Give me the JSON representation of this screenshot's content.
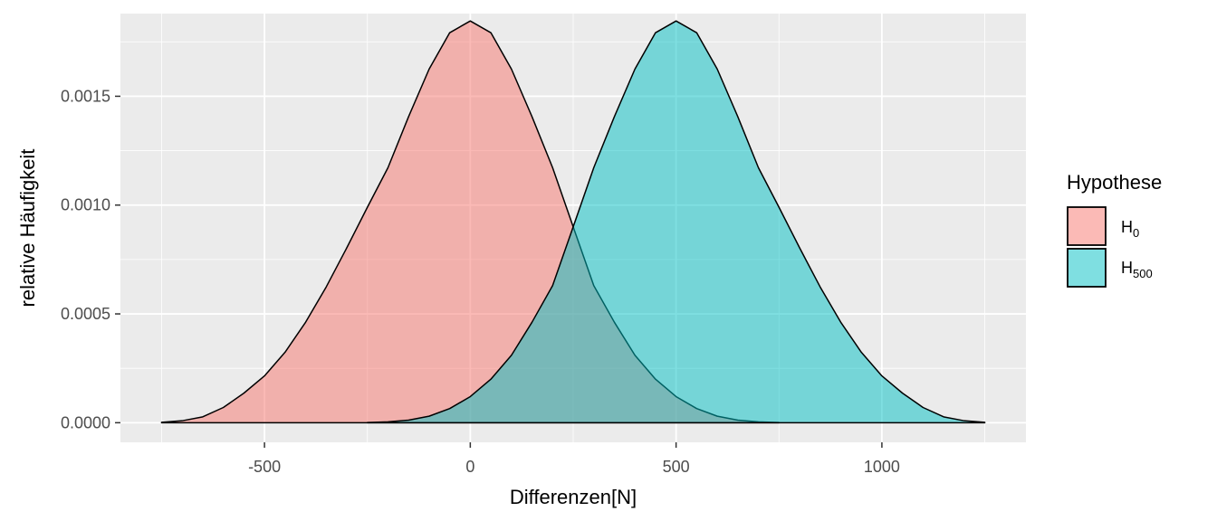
{
  "chart_data": {
    "type": "area",
    "title": "",
    "xlabel": "Differenzen[N]",
    "ylabel": "relative Häufigkeit",
    "xlim": [
      -850,
      1350
    ],
    "ylim": [
      -9e-05,
      0.00188
    ],
    "x_ticks": [
      -500,
      0,
      500,
      1000
    ],
    "x_tick_labels": [
      "-500",
      "0",
      "500",
      "1000"
    ],
    "y_ticks": [
      0,
      0.0005,
      0.001,
      0.0015
    ],
    "y_tick_labels": [
      "0.0000",
      "0.0005",
      "0.0010",
      "0.0015"
    ],
    "grid": true,
    "legend": {
      "title": "Hypothese",
      "position": "right",
      "entries": [
        {
          "base": "H",
          "sub": "0",
          "color": "#F8766D"
        },
        {
          "base": "H",
          "sub": "500",
          "color": "#00BFC4"
        }
      ]
    },
    "series": [
      {
        "name": "H0",
        "color": "#F8766D",
        "x": [
          -750,
          -700,
          -650,
          -600,
          -550,
          -500,
          -450,
          -400,
          -350,
          -300,
          -250,
          -200,
          -150,
          -100,
          -50,
          0,
          50,
          100,
          150,
          200,
          250,
          300,
          350,
          400,
          450,
          500,
          550,
          600,
          650,
          700,
          750
        ],
        "y": [
          2.2e-06,
          9e-06,
          2.7e-05,
          7e-05,
          0.000136,
          0.000215,
          0.000324,
          0.000462,
          0.000624,
          0.000804,
          0.00099,
          0.001172,
          0.001406,
          0.001625,
          0.001792,
          0.001846,
          0.001792,
          0.001625,
          0.001406,
          0.001172,
          0.0009,
          0.00063,
          0.000462,
          0.00031,
          0.0002,
          0.00012,
          6.5e-05,
          3e-05,
          1.2e-05,
          4e-06,
          1e-06
        ]
      },
      {
        "name": "H500",
        "color": "#00BFC4",
        "x": [
          -250,
          -200,
          -150,
          -100,
          -50,
          0,
          50,
          100,
          150,
          200,
          250,
          300,
          350,
          400,
          450,
          500,
          550,
          600,
          650,
          700,
          750,
          800,
          850,
          900,
          950,
          1000,
          1050,
          1100,
          1150,
          1200,
          1250
        ],
        "y": [
          1e-06,
          4e-06,
          1.2e-05,
          3e-05,
          6.5e-05,
          0.00012,
          0.0002,
          0.00031,
          0.000462,
          0.00063,
          0.0009,
          0.001172,
          0.001406,
          0.001625,
          0.001792,
          0.001846,
          0.001792,
          0.001625,
          0.001406,
          0.001172,
          0.00099,
          0.000804,
          0.000624,
          0.000462,
          0.000324,
          0.000215,
          0.000136,
          7e-05,
          2.7e-05,
          9e-06,
          2.2e-06
        ]
      }
    ]
  }
}
